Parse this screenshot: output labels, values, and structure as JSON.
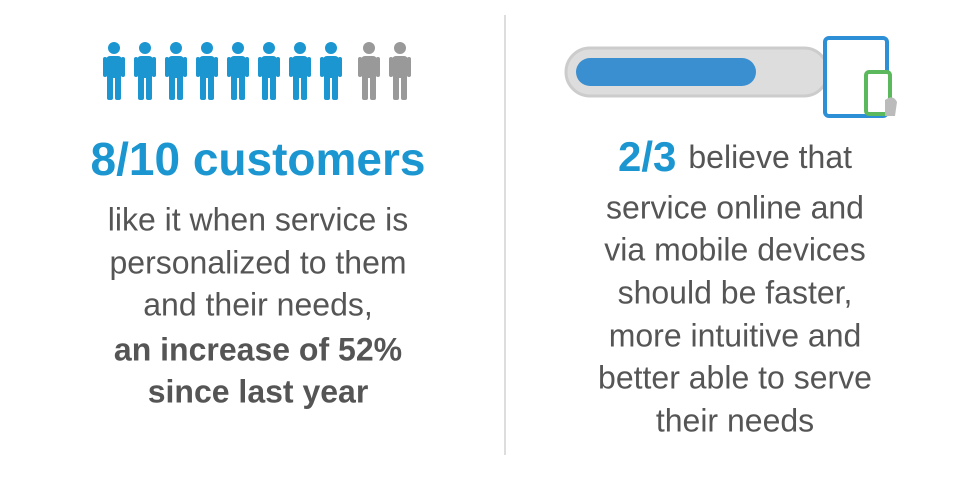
{
  "left": {
    "headline": "8/10 customers",
    "lines": [
      "like it when service is",
      "personalized to them",
      "and their needs,"
    ],
    "emphasis": [
      "an increase of 52%",
      "since last year"
    ]
  },
  "right": {
    "highlight": "2/3",
    "first_line": "believe that",
    "lines": [
      "service online and",
      "via mobile devices",
      "should be faster,",
      "more intuitive and",
      "better able to serve",
      "their needs"
    ]
  }
}
